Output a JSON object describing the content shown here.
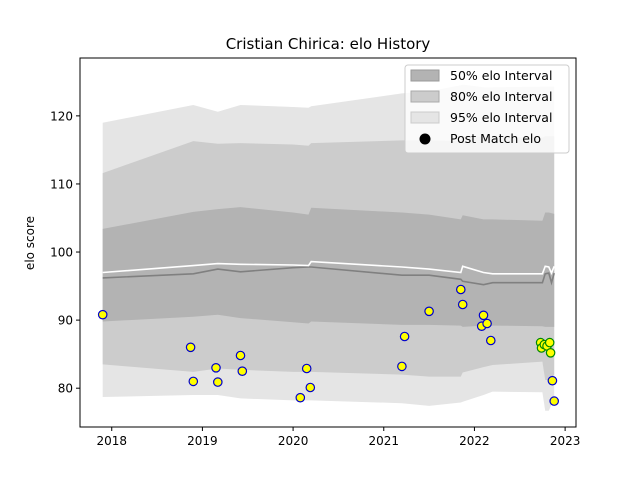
{
  "chart_data": {
    "type": "scatter",
    "title": "Cristian Chirica: elo History",
    "xlabel": "",
    "ylabel": "elo score",
    "x_ticks": [
      2018,
      2019,
      2020,
      2021,
      2022,
      2023
    ],
    "y_ticks": [
      80,
      90,
      100,
      110,
      120
    ],
    "xlim": [
      2017.65,
      2023.12
    ],
    "ylim": [
      74.3,
      128.5
    ],
    "grid": false,
    "legend_position": "top-right",
    "legend": [
      {
        "label": "50% elo Interval",
        "color": "#b3b3b3"
      },
      {
        "label": "80% elo Interval",
        "color": "#cccccc"
      },
      {
        "label": "95% elo Interval",
        "color": "#e5e5e5"
      },
      {
        "label": "Post Match elo",
        "color": "#000000"
      }
    ],
    "colors": {
      "band50": "#b3b3b3",
      "band80": "#cccccc",
      "band95": "#e5e5e5",
      "median_line": "#808080",
      "mean_line": "#ffffff",
      "marker_fill": "#ffff00",
      "marker_edge": "#0000cc",
      "marker_recent_edge": "#008800"
    },
    "series": [
      {
        "band": "95",
        "x": [
          2017.9,
          2018.9,
          2019.17,
          2019.42,
          2020.0,
          2020.17,
          2020.2,
          2021.2,
          2021.5,
          2021.85,
          2021.87,
          2022.1,
          2022.2,
          2022.75,
          2022.78,
          2022.82,
          2022.88
        ],
        "upper": [
          119.0,
          121.6,
          120.6,
          121.6,
          121.3,
          121.2,
          121.4,
          123.3,
          123.6,
          124.5,
          124.6,
          124.2,
          124.2,
          124.3,
          124.3,
          124.3,
          124.3
        ],
        "lower": [
          78.7,
          79.0,
          79.0,
          78.5,
          78.2,
          78.2,
          78.2,
          77.8,
          77.4,
          77.9,
          78.0,
          79.0,
          79.5,
          79.4,
          76.7,
          76.7,
          78.5
        ]
      },
      {
        "band": "80",
        "x": [
          2017.9,
          2018.9,
          2019.17,
          2019.42,
          2020.0,
          2020.17,
          2020.2,
          2021.2,
          2021.5,
          2021.85,
          2021.87,
          2022.1,
          2022.2,
          2022.75,
          2022.78,
          2022.82,
          2022.88
        ],
        "upper": [
          111.6,
          116.3,
          115.9,
          116.0,
          115.8,
          115.6,
          116.0,
          116.4,
          116.4,
          116.3,
          117.0,
          116.9,
          116.9,
          116.8,
          117.0,
          117.0,
          117.0
        ],
        "lower": [
          83.5,
          82.4,
          82.9,
          82.7,
          82.4,
          82.4,
          82.4,
          82.0,
          81.7,
          81.7,
          82.3,
          83.1,
          83.4,
          83.9,
          81.2,
          81.2,
          82.0
        ]
      },
      {
        "band": "50",
        "x": [
          2017.9,
          2018.9,
          2019.17,
          2019.42,
          2020.0,
          2020.17,
          2020.2,
          2021.2,
          2021.5,
          2021.85,
          2021.87,
          2022.1,
          2022.2,
          2022.75,
          2022.78,
          2022.82,
          2022.88
        ],
        "upper": [
          103.4,
          105.9,
          106.3,
          106.6,
          105.8,
          105.5,
          106.5,
          105.8,
          105.5,
          104.8,
          105.4,
          104.8,
          104.8,
          104.6,
          105.8,
          105.8,
          105.6
        ],
        "lower": [
          89.8,
          90.5,
          90.8,
          90.3,
          89.7,
          89.5,
          89.8,
          89.3,
          89.3,
          89.2,
          89.0,
          89.2,
          89.2,
          89.1,
          89.0,
          89.0,
          89.0
        ]
      },
      {
        "name": "median",
        "x": [
          2017.9,
          2018.9,
          2019.17,
          2019.42,
          2020.0,
          2020.17,
          2020.2,
          2021.2,
          2021.5,
          2021.85,
          2021.87,
          2022.1,
          2022.2,
          2022.75,
          2022.78,
          2022.82,
          2022.85,
          2022.88
        ],
        "y": [
          96.2,
          96.8,
          97.5,
          97.1,
          97.7,
          97.8,
          97.8,
          96.6,
          96.6,
          96.0,
          95.7,
          95.2,
          95.5,
          95.5,
          96.8,
          96.9,
          95.5,
          96.9
        ]
      },
      {
        "name": "mean",
        "x": [
          2017.9,
          2018.9,
          2019.17,
          2019.42,
          2020.0,
          2020.17,
          2020.2,
          2021.2,
          2021.5,
          2021.85,
          2021.87,
          2022.1,
          2022.2,
          2022.75,
          2022.78,
          2022.82,
          2022.85,
          2022.88
        ],
        "y": [
          97.0,
          98.0,
          98.3,
          98.2,
          98.1,
          98.0,
          98.6,
          97.8,
          97.5,
          97.0,
          97.9,
          97.0,
          96.8,
          96.8,
          97.9,
          97.8,
          96.9,
          97.9
        ]
      },
      {
        "name": "Post Match elo",
        "points": [
          {
            "x": 2017.9,
            "y": 90.8
          },
          {
            "x": 2018.87,
            "y": 86.0
          },
          {
            "x": 2018.9,
            "y": 81.0
          },
          {
            "x": 2019.15,
            "y": 83.0
          },
          {
            "x": 2019.17,
            "y": 80.9
          },
          {
            "x": 2019.42,
            "y": 84.8
          },
          {
            "x": 2019.44,
            "y": 82.5
          },
          {
            "x": 2020.08,
            "y": 78.6
          },
          {
            "x": 2020.15,
            "y": 82.9
          },
          {
            "x": 2020.19,
            "y": 80.1
          },
          {
            "x": 2021.2,
            "y": 83.2
          },
          {
            "x": 2021.23,
            "y": 87.6
          },
          {
            "x": 2021.5,
            "y": 91.3
          },
          {
            "x": 2021.85,
            "y": 94.5
          },
          {
            "x": 2021.87,
            "y": 92.3
          },
          {
            "x": 2022.08,
            "y": 89.1
          },
          {
            "x": 2022.1,
            "y": 90.7
          },
          {
            "x": 2022.14,
            "y": 89.5
          },
          {
            "x": 2022.18,
            "y": 87.0
          },
          {
            "x": 2022.73,
            "y": 86.7
          },
          {
            "x": 2022.74,
            "y": 85.9
          },
          {
            "x": 2022.77,
            "y": 86.4
          },
          {
            "x": 2022.8,
            "y": 86.2
          },
          {
            "x": 2022.83,
            "y": 86.7
          },
          {
            "x": 2022.84,
            "y": 85.2
          },
          {
            "x": 2022.86,
            "y": 81.1
          },
          {
            "x": 2022.88,
            "y": 78.1
          }
        ]
      }
    ]
  }
}
